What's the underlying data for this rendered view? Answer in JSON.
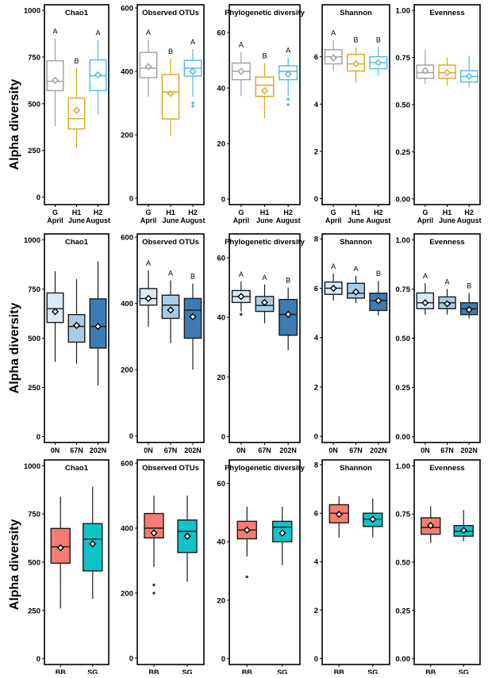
{
  "y_axis_label": "Alpha diversity",
  "chart_data": [
    {
      "type": "box",
      "row": 1,
      "xlabel": "",
      "ylabel": "Alpha diversity",
      "categories": [
        [
          "G",
          "April"
        ],
        [
          "H1",
          "June"
        ],
        [
          "H2",
          "August"
        ]
      ],
      "colors": [
        "#9e9e9e",
        "#e3a21a",
        "#4db8e8"
      ],
      "panels": [
        {
          "title": "Chao1",
          "ylim": [
            -40,
            1030
          ],
          "yticks": [
            0,
            250,
            500,
            750,
            1000
          ],
          "tick_labels": [
            "0",
            "250",
            "500",
            "750",
            "1000"
          ],
          "boxes": [
            {
              "whislo": 380,
              "q1": 570,
              "med": 620,
              "q3": 730,
              "whishi": 850,
              "mean": 625,
              "letter": "A",
              "outliers": []
            },
            {
              "whislo": 260,
              "q1": 365,
              "med": 420,
              "q3": 530,
              "whishi": 690,
              "mean": 465,
              "letter": "B",
              "outliers": []
            },
            {
              "whislo": 440,
              "q1": 570,
              "med": 650,
              "q3": 735,
              "whishi": 840,
              "mean": 655,
              "letter": "A",
              "outliers": []
            }
          ]
        },
        {
          "title": "Observed OTUs",
          "ylim": [
            -20,
            610
          ],
          "yticks": [
            0,
            200,
            400,
            600
          ],
          "tick_labels": [
            "0",
            "200",
            "400",
            "600"
          ],
          "boxes": [
            {
              "whislo": 320,
              "q1": 380,
              "med": 410,
              "q3": 460,
              "whishi": 500,
              "mean": 415,
              "letter": "A",
              "outliers": []
            },
            {
              "whislo": 195,
              "q1": 250,
              "med": 335,
              "q3": 390,
              "whishi": 440,
              "mean": 330,
              "letter": "B",
              "outliers": []
            },
            {
              "whislo": 320,
              "q1": 385,
              "med": 410,
              "q3": 435,
              "whishi": 470,
              "mean": 400,
              "letter": "A",
              "outliers": [
                290,
                300
              ]
            }
          ]
        },
        {
          "title": "Phylogenetic diversity",
          "ylim": [
            -2,
            70
          ],
          "yticks": [
            0,
            20,
            40,
            60
          ],
          "tick_labels": [
            "0",
            "20",
            "40",
            "60"
          ],
          "boxes": [
            {
              "whislo": 37,
              "q1": 43,
              "med": 46,
              "q3": 49,
              "whishi": 53,
              "mean": 46,
              "letter": "A",
              "outliers": []
            },
            {
              "whislo": 29,
              "q1": 37,
              "med": 41,
              "q3": 44,
              "whishi": 49,
              "mean": 39,
              "letter": "B",
              "outliers": []
            },
            {
              "whislo": 37,
              "q1": 43,
              "med": 46,
              "q3": 48,
              "whishi": 51,
              "mean": 45,
              "letter": "A",
              "outliers": [
                34,
                36
              ]
            }
          ]
        },
        {
          "title": "Shannon",
          "ylim": [
            -0.25,
            8.2
          ],
          "yticks": [
            0,
            2,
            4,
            6
          ],
          "tick_labels": [
            "0",
            "2",
            "4",
            "6"
          ],
          "boxes": [
            {
              "whislo": 5.4,
              "q1": 5.7,
              "med": 6.0,
              "q3": 6.3,
              "whishi": 6.7,
              "mean": 5.95,
              "letter": "A",
              "outliers": []
            },
            {
              "whislo": 4.9,
              "q1": 5.4,
              "med": 5.7,
              "q3": 6.1,
              "whishi": 6.4,
              "mean": 5.7,
              "letter": "B",
              "outliers": []
            },
            {
              "whislo": 5.2,
              "q1": 5.5,
              "med": 5.75,
              "q3": 6.0,
              "whishi": 6.4,
              "mean": 5.75,
              "letter": "B",
              "outliers": []
            }
          ]
        },
        {
          "title": "Evenness",
          "ylim": [
            -0.03,
            1.03
          ],
          "yticks": [
            0,
            0.25,
            0.5,
            0.75,
            1.0
          ],
          "tick_labels": [
            "0.00",
            "0.25",
            "0.50",
            "0.75",
            "1.00"
          ],
          "boxes": [
            {
              "whislo": 0.61,
              "q1": 0.64,
              "med": 0.67,
              "q3": 0.71,
              "whishi": 0.79,
              "mean": 0.68,
              "letter": "",
              "outliers": []
            },
            {
              "whislo": 0.6,
              "q1": 0.64,
              "med": 0.67,
              "q3": 0.71,
              "whishi": 0.75,
              "mean": 0.67,
              "letter": "",
              "outliers": []
            },
            {
              "whislo": 0.59,
              "q1": 0.62,
              "med": 0.65,
              "q3": 0.68,
              "whishi": 0.76,
              "mean": 0.65,
              "letter": "",
              "outliers": []
            }
          ]
        }
      ]
    },
    {
      "type": "box",
      "row": 2,
      "xlabel": "",
      "ylabel": "Alpha diversity",
      "categories": [
        [
          "0N"
        ],
        [
          "67N"
        ],
        [
          "202N"
        ]
      ],
      "colors": [
        "#dbeaf7",
        "#a9cce6",
        "#3c7bb4"
      ],
      "panels": [
        {
          "title": "Chao1",
          "ylim": [
            -30,
            1030
          ],
          "yticks": [
            0,
            250,
            500,
            750,
            1000
          ],
          "tick_labels": [
            "0",
            "250",
            "500",
            "750",
            "1000"
          ],
          "boxes": [
            {
              "whislo": 380,
              "q1": 580,
              "med": 650,
              "q3": 730,
              "whishi": 840,
              "mean": 635,
              "letter": "",
              "outliers": []
            },
            {
              "whislo": 370,
              "q1": 480,
              "med": 560,
              "q3": 620,
              "whishi": 800,
              "mean": 565,
              "letter": "",
              "outliers": []
            },
            {
              "whislo": 260,
              "q1": 450,
              "med": 560,
              "q3": 700,
              "whishi": 890,
              "mean": 560,
              "letter": "",
              "outliers": []
            }
          ]
        },
        {
          "title": "Observed OTUs",
          "ylim": [
            -20,
            610
          ],
          "yticks": [
            0,
            200,
            400,
            600
          ],
          "tick_labels": [
            "0",
            "200",
            "400",
            "600"
          ],
          "boxes": [
            {
              "whislo": 330,
              "q1": 395,
              "med": 415,
              "q3": 445,
              "whishi": 500,
              "mean": 415,
              "letter": "A",
              "outliers": []
            },
            {
              "whislo": 280,
              "q1": 355,
              "med": 395,
              "q3": 425,
              "whishi": 470,
              "mean": 380,
              "letter": "A",
              "outliers": []
            },
            {
              "whislo": 200,
              "q1": 295,
              "med": 380,
              "q3": 415,
              "whishi": 460,
              "mean": 360,
              "letter": "B",
              "outliers": []
            }
          ]
        },
        {
          "title": "Phylogenetic diversity",
          "ylim": [
            -2,
            68
          ],
          "yticks": [
            0,
            20,
            40,
            60
          ],
          "tick_labels": [
            "0",
            "20",
            "40",
            "60"
          ],
          "boxes": [
            {
              "whislo": 42,
              "q1": 45,
              "med": 47,
              "q3": 49,
              "whishi": 52,
              "mean": 47,
              "letter": "A",
              "outliers": [
                41
              ]
            },
            {
              "whislo": 38,
              "q1": 42,
              "med": 44,
              "q3": 47,
              "whishi": 51,
              "mean": 45,
              "letter": "A",
              "outliers": []
            },
            {
              "whislo": 29,
              "q1": 34,
              "med": 41,
              "q3": 46,
              "whishi": 50,
              "mean": 41,
              "letter": "B",
              "outliers": []
            }
          ]
        },
        {
          "title": "Shannon",
          "ylim": [
            -0.25,
            8.2
          ],
          "yticks": [
            0,
            2,
            4,
            6,
            8
          ],
          "tick_labels": [
            "0",
            "2",
            "4",
            "6",
            "8"
          ],
          "boxes": [
            {
              "whislo": 5.5,
              "q1": 5.75,
              "med": 6.0,
              "q3": 6.25,
              "whishi": 6.6,
              "mean": 6.0,
              "letter": "A",
              "outliers": []
            },
            {
              "whislo": 5.4,
              "q1": 5.6,
              "med": 5.8,
              "q3": 6.2,
              "whishi": 6.5,
              "mean": 5.85,
              "letter": "A",
              "outliers": []
            },
            {
              "whislo": 4.9,
              "q1": 5.1,
              "med": 5.5,
              "q3": 5.8,
              "whishi": 6.3,
              "mean": 5.5,
              "letter": "B",
              "outliers": []
            }
          ]
        },
        {
          "title": "Evenness",
          "ylim": [
            -0.03,
            1.03
          ],
          "yticks": [
            0,
            0.25,
            0.5,
            0.75,
            1.0
          ],
          "tick_labels": [
            "0.00",
            "0.25",
            "0.50",
            "0.75",
            "1.00"
          ],
          "boxes": [
            {
              "whislo": 0.62,
              "q1": 0.65,
              "med": 0.68,
              "q3": 0.73,
              "whishi": 0.78,
              "mean": 0.68,
              "letter": "A",
              "outliers": []
            },
            {
              "whislo": 0.62,
              "q1": 0.65,
              "med": 0.68,
              "q3": 0.71,
              "whishi": 0.75,
              "mean": 0.675,
              "letter": "A",
              "outliers": []
            },
            {
              "whislo": 0.6,
              "q1": 0.62,
              "med": 0.65,
              "q3": 0.68,
              "whishi": 0.73,
              "mean": 0.645,
              "letter": "B",
              "outliers": []
            }
          ]
        }
      ]
    },
    {
      "type": "box",
      "row": 3,
      "xlabel": "",
      "ylabel": "Alpha diversity",
      "categories": [
        [
          "BB"
        ],
        [
          "SG"
        ]
      ],
      "colors": [
        "#f47c72",
        "#11c2c6"
      ],
      "panels": [
        {
          "title": "Chao1",
          "ylim": [
            -30,
            1030
          ],
          "yticks": [
            0,
            250,
            500,
            750,
            1000
          ],
          "tick_labels": [
            "0",
            "250",
            "500",
            "750",
            "1000"
          ],
          "boxes": [
            {
              "whislo": 260,
              "q1": 495,
              "med": 580,
              "q3": 675,
              "whishi": 840,
              "mean": 575,
              "letter": "",
              "outliers": []
            },
            {
              "whislo": 310,
              "q1": 455,
              "med": 620,
              "q3": 700,
              "whishi": 890,
              "mean": 595,
              "letter": "",
              "outliers": []
            }
          ]
        },
        {
          "title": "Observed OTUs",
          "ylim": [
            -20,
            610
          ],
          "yticks": [
            0,
            200,
            400,
            600
          ],
          "tick_labels": [
            "0",
            "200",
            "400",
            "600"
          ],
          "boxes": [
            {
              "whislo": 280,
              "q1": 370,
              "med": 400,
              "q3": 445,
              "whishi": 500,
              "mean": 385,
              "letter": "",
              "outliers": [
                200,
                225
              ]
            },
            {
              "whislo": 235,
              "q1": 325,
              "med": 390,
              "q3": 425,
              "whishi": 500,
              "mean": 375,
              "letter": "",
              "outliers": []
            }
          ]
        },
        {
          "title": "Phylogenetic diversity",
          "ylim": [
            -2,
            68
          ],
          "yticks": [
            0,
            20,
            40,
            60
          ],
          "tick_labels": [
            "0",
            "20",
            "40",
            "60"
          ],
          "boxes": [
            {
              "whislo": 35,
              "q1": 41,
              "med": 44,
              "q3": 47,
              "whishi": 52,
              "mean": 44,
              "letter": "",
              "outliers": [
                28
              ]
            },
            {
              "whislo": 32,
              "q1": 40,
              "med": 45,
              "q3": 47,
              "whishi": 52,
              "mean": 43,
              "letter": "",
              "outliers": []
            }
          ]
        },
        {
          "title": "Shannon",
          "ylim": [
            -0.25,
            8.2
          ],
          "yticks": [
            0,
            2,
            4,
            6,
            8
          ],
          "tick_labels": [
            "0",
            "2",
            "4",
            "6",
            "8"
          ],
          "boxes": [
            {
              "whislo": 5.0,
              "q1": 5.6,
              "med": 6.0,
              "q3": 6.35,
              "whishi": 6.7,
              "mean": 5.95,
              "letter": "",
              "outliers": []
            },
            {
              "whislo": 5.0,
              "q1": 5.45,
              "med": 5.75,
              "q3": 6.0,
              "whishi": 6.6,
              "mean": 5.75,
              "letter": "",
              "outliers": []
            }
          ]
        },
        {
          "title": "Evenness",
          "ylim": [
            -0.03,
            1.03
          ],
          "yticks": [
            0,
            0.25,
            0.5,
            0.75,
            1.0
          ],
          "tick_labels": [
            "0.00",
            "0.25",
            "0.50",
            "0.75",
            "1.00"
          ],
          "boxes": [
            {
              "whislo": 0.6,
              "q1": 0.645,
              "med": 0.68,
              "q3": 0.73,
              "whishi": 0.79,
              "mean": 0.69,
              "letter": "",
              "outliers": []
            },
            {
              "whislo": 0.61,
              "q1": 0.635,
              "med": 0.66,
              "q3": 0.69,
              "whishi": 0.77,
              "mean": 0.665,
              "letter": "",
              "outliers": []
            }
          ]
        }
      ]
    }
  ]
}
